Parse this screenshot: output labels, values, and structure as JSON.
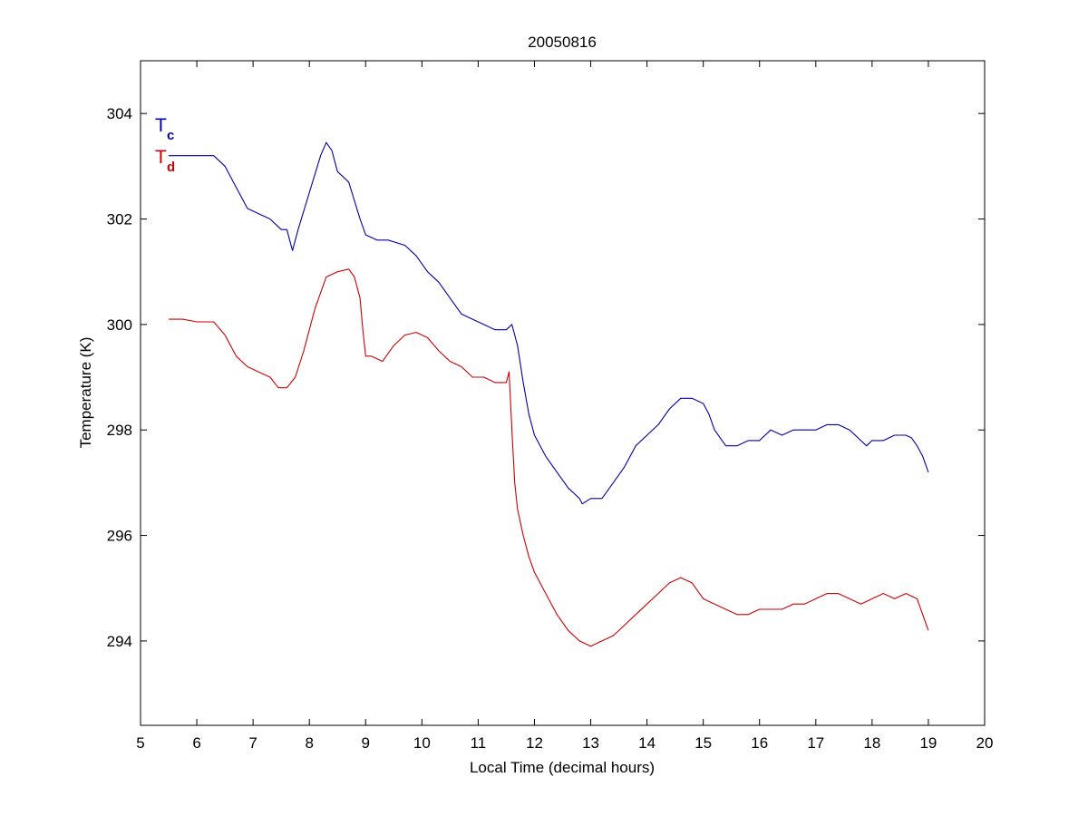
{
  "chart_data": {
    "type": "line",
    "title": "20050816",
    "xlabel": "Local Time (decimal hours)",
    "ylabel": "Temperature (K)",
    "xlim": [
      5,
      20
    ],
    "ylim": [
      292.4,
      305
    ],
    "xticks": [
      5,
      6,
      7,
      8,
      9,
      10,
      11,
      12,
      13,
      14,
      15,
      16,
      17,
      18,
      19,
      20
    ],
    "yticks": [
      294,
      296,
      298,
      300,
      302,
      304
    ],
    "grid": false,
    "legend": "top-left",
    "series": [
      {
        "name": "T",
        "subscript": "c",
        "color": "#0000aa",
        "x": [
          5.5,
          5.75,
          6.0,
          6.3,
          6.5,
          6.7,
          6.9,
          7.1,
          7.3,
          7.5,
          7.6,
          7.65,
          7.7,
          7.8,
          8.0,
          8.2,
          8.3,
          8.4,
          8.5,
          8.7,
          8.9,
          9.0,
          9.2,
          9.4,
          9.7,
          9.9,
          10.1,
          10.3,
          10.5,
          10.7,
          10.9,
          11.1,
          11.3,
          11.5,
          11.6,
          11.7,
          11.8,
          11.9,
          12.0,
          12.2,
          12.4,
          12.6,
          12.8,
          12.85,
          13.0,
          13.2,
          13.4,
          13.6,
          13.8,
          14.0,
          14.2,
          14.4,
          14.6,
          14.8,
          15.0,
          15.1,
          15.2,
          15.4,
          15.6,
          15.8,
          16.0,
          16.2,
          16.4,
          16.6,
          16.8,
          17.0,
          17.2,
          17.4,
          17.6,
          17.8,
          17.9,
          18.0,
          18.2,
          18.4,
          18.6,
          18.7,
          18.8,
          18.9,
          19.0
        ],
        "values": [
          303.2,
          303.2,
          303.2,
          303.2,
          303.0,
          302.6,
          302.2,
          302.1,
          302.0,
          301.8,
          301.8,
          301.6,
          301.4,
          301.8,
          302.5,
          303.2,
          303.45,
          303.3,
          302.9,
          302.7,
          302.0,
          301.7,
          301.6,
          301.6,
          301.5,
          301.3,
          301.0,
          300.8,
          300.5,
          300.2,
          300.1,
          300.0,
          299.9,
          299.9,
          300.0,
          299.6,
          298.9,
          298.3,
          297.9,
          297.5,
          297.2,
          296.9,
          296.7,
          296.6,
          296.7,
          296.7,
          297.0,
          297.3,
          297.7,
          297.9,
          298.1,
          298.4,
          298.6,
          298.6,
          298.5,
          298.3,
          298.0,
          297.7,
          297.7,
          297.8,
          297.8,
          298.0,
          297.9,
          298.0,
          298.0,
          298.0,
          298.1,
          298.1,
          298.0,
          297.8,
          297.7,
          297.8,
          297.8,
          297.9,
          297.9,
          297.85,
          297.7,
          297.5,
          297.2
        ]
      },
      {
        "name": "T",
        "subscript": "d",
        "color": "#cc0000",
        "x": [
          5.5,
          5.75,
          6.0,
          6.3,
          6.5,
          6.7,
          6.9,
          7.1,
          7.3,
          7.45,
          7.6,
          7.75,
          7.9,
          8.1,
          8.3,
          8.5,
          8.7,
          8.8,
          8.9,
          8.95,
          9.0,
          9.1,
          9.3,
          9.5,
          9.7,
          9.9,
          10.1,
          10.3,
          10.5,
          10.7,
          10.9,
          11.1,
          11.3,
          11.5,
          11.55,
          11.6,
          11.65,
          11.7,
          11.8,
          11.9,
          12.0,
          12.2,
          12.4,
          12.6,
          12.8,
          13.0,
          13.2,
          13.4,
          13.6,
          13.8,
          14.0,
          14.2,
          14.4,
          14.6,
          14.8,
          15.0,
          15.2,
          15.4,
          15.6,
          15.8,
          16.0,
          16.2,
          16.4,
          16.6,
          16.8,
          17.0,
          17.2,
          17.4,
          17.6,
          17.8,
          18.0,
          18.2,
          18.4,
          18.6,
          18.8,
          19.0
        ],
        "values": [
          300.1,
          300.1,
          300.05,
          300.05,
          299.8,
          299.4,
          299.2,
          299.1,
          299.0,
          298.8,
          298.8,
          299.0,
          299.5,
          300.3,
          300.9,
          301.0,
          301.05,
          300.9,
          300.5,
          299.9,
          299.4,
          299.4,
          299.3,
          299.6,
          299.8,
          299.85,
          299.75,
          299.5,
          299.3,
          299.2,
          299.0,
          299.0,
          298.9,
          298.9,
          299.1,
          298.0,
          297.0,
          296.5,
          296.0,
          295.6,
          295.3,
          294.9,
          294.5,
          294.2,
          294.0,
          293.9,
          294.0,
          294.1,
          294.3,
          294.5,
          294.7,
          294.9,
          295.1,
          295.2,
          295.1,
          294.8,
          294.7,
          294.6,
          294.5,
          294.5,
          294.6,
          294.6,
          294.6,
          294.7,
          294.7,
          294.8,
          294.9,
          294.9,
          294.8,
          294.7,
          294.8,
          294.9,
          294.8,
          294.9,
          294.8,
          294.2
        ]
      }
    ]
  }
}
